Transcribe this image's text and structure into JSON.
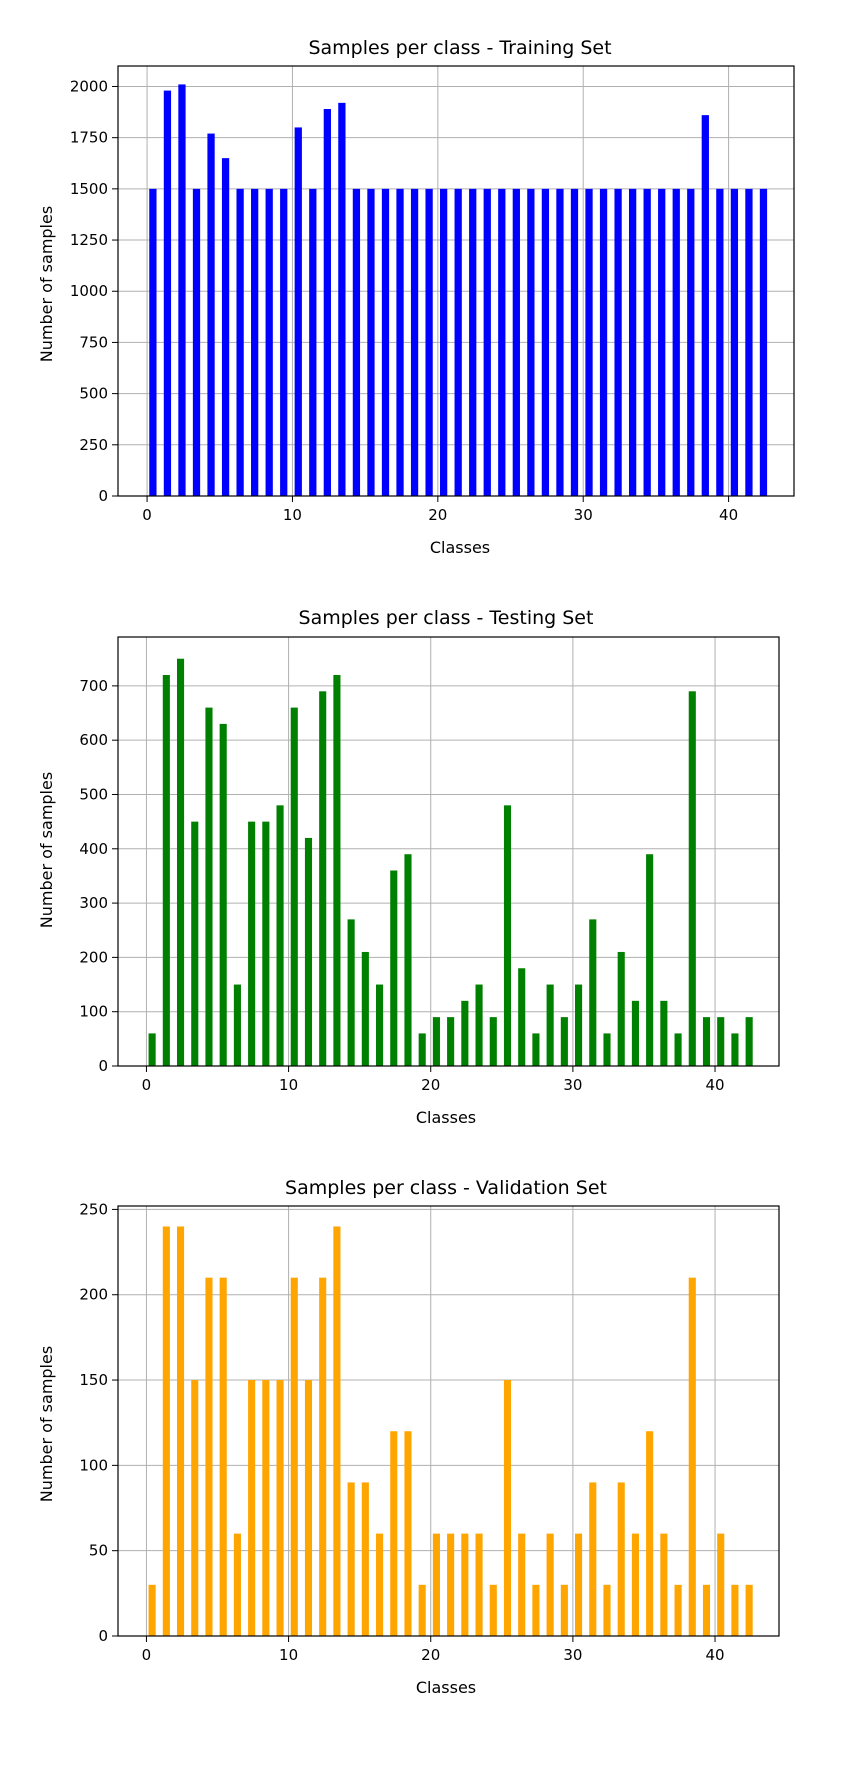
{
  "chart_data": [
    {
      "type": "bar",
      "title": "Samples per class - Training Set",
      "xlabel": "Classes",
      "ylabel": "Number of samples",
      "color": "#0000ff",
      "grid": true,
      "xlim": [
        -2,
        44.5
      ],
      "ylim": [
        0,
        2100
      ],
      "xticks": [
        0,
        10,
        20,
        30,
        40
      ],
      "yticks": [
        0,
        250,
        500,
        750,
        1000,
        1250,
        1500,
        1750,
        2000
      ],
      "x": [
        0,
        1,
        2,
        3,
        4,
        5,
        6,
        7,
        8,
        9,
        10,
        11,
        12,
        13,
        14,
        15,
        16,
        17,
        18,
        19,
        20,
        21,
        22,
        23,
        24,
        25,
        26,
        27,
        28,
        29,
        30,
        31,
        32,
        33,
        34,
        35,
        36,
        37,
        38,
        39,
        40,
        41,
        42
      ],
      "values": [
        1500,
        1980,
        2010,
        1500,
        1770,
        1650,
        1500,
        1500,
        1500,
        1500,
        1800,
        1500,
        1890,
        1920,
        1500,
        1500,
        1500,
        1500,
        1500,
        1500,
        1500,
        1500,
        1500,
        1500,
        1500,
        1500,
        1500,
        1500,
        1500,
        1500,
        1500,
        1500,
        1500,
        1500,
        1500,
        1500,
        1500,
        1500,
        1860,
        1500,
        1500,
        1500,
        1500
      ]
    },
    {
      "type": "bar",
      "title": "Samples per class - Testing Set",
      "xlabel": "Classes",
      "ylabel": "Number of samples",
      "color": "#008000",
      "grid": true,
      "xlim": [
        -2,
        44.5
      ],
      "ylim": [
        0,
        790
      ],
      "xticks": [
        0,
        10,
        20,
        30,
        40
      ],
      "yticks": [
        0,
        100,
        200,
        300,
        400,
        500,
        600,
        700
      ],
      "x": [
        0,
        1,
        2,
        3,
        4,
        5,
        6,
        7,
        8,
        9,
        10,
        11,
        12,
        13,
        14,
        15,
        16,
        17,
        18,
        19,
        20,
        21,
        22,
        23,
        24,
        25,
        26,
        27,
        28,
        29,
        30,
        31,
        32,
        33,
        34,
        35,
        36,
        37,
        38,
        39,
        40,
        41,
        42
      ],
      "values": [
        60,
        720,
        750,
        450,
        660,
        630,
        150,
        450,
        450,
        480,
        660,
        420,
        690,
        720,
        270,
        210,
        150,
        360,
        390,
        60,
        90,
        90,
        120,
        150,
        90,
        480,
        180,
        60,
        150,
        90,
        150,
        270,
        60,
        210,
        120,
        390,
        120,
        60,
        690,
        90,
        90,
        60,
        90
      ]
    },
    {
      "type": "bar",
      "title": "Samples per class - Validation Set",
      "xlabel": "Classes",
      "ylabel": "Number of samples",
      "color": "#ffa500",
      "grid": true,
      "xlim": [
        -2,
        44.5
      ],
      "ylim": [
        0,
        252
      ],
      "xticks": [
        0,
        10,
        20,
        30,
        40
      ],
      "yticks": [
        0,
        50,
        100,
        150,
        200,
        250
      ],
      "x": [
        0,
        1,
        2,
        3,
        4,
        5,
        6,
        7,
        8,
        9,
        10,
        11,
        12,
        13,
        14,
        15,
        16,
        17,
        18,
        19,
        20,
        21,
        22,
        23,
        24,
        25,
        26,
        27,
        28,
        29,
        30,
        31,
        32,
        33,
        34,
        35,
        36,
        37,
        38,
        39,
        40,
        41,
        42
      ],
      "values": [
        30,
        240,
        240,
        150,
        210,
        210,
        60,
        150,
        150,
        150,
        210,
        150,
        210,
        240,
        90,
        90,
        60,
        120,
        120,
        30,
        60,
        60,
        60,
        60,
        30,
        150,
        60,
        30,
        60,
        30,
        60,
        90,
        30,
        90,
        60,
        120,
        60,
        30,
        210,
        30,
        60,
        30,
        30
      ]
    }
  ]
}
